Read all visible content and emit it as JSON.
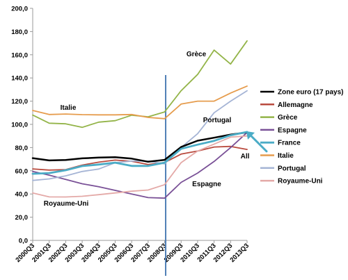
{
  "chart_data": {
    "type": "line",
    "ylim": [
      0,
      200
    ],
    "yticks": [
      "0,0",
      "20,0",
      "40,0",
      "60,0",
      "80,0",
      "100,0",
      "120,0",
      "140,0",
      "160,0",
      "180,0",
      "200,0"
    ],
    "categories": [
      "2000Q3",
      "2001Q3",
      "2002Q3",
      "2003Q3",
      "2004Q3",
      "2005Q3",
      "2006Q3",
      "2007Q3",
      "2008Q3",
      "2009Q3",
      "2010Q3",
      "2011Q3",
      "2012Q3",
      "2013Q3"
    ],
    "vline_at": "2008Q3",
    "series": [
      {
        "name": "Zone euro (17 pays)",
        "color": "#000000",
        "width": 2.5,
        "values": [
          70.9,
          68.9,
          69.3,
          70.7,
          71.4,
          71.7,
          70.5,
          67.8,
          69.4,
          80.5,
          85.9,
          88.5,
          91.2,
          93.1
        ]
      },
      {
        "name": "Allemagne",
        "color": "#b94a3e",
        "width": 1.8,
        "values": [
          61.6,
          60.6,
          61.0,
          64.9,
          67.4,
          69.2,
          68.2,
          65.4,
          67.1,
          74.4,
          77.0,
          80.5,
          81.0,
          78.4
        ]
      },
      {
        "name": "Grèce",
        "color": "#93b448",
        "width": 1.8,
        "values": [
          108.0,
          101.0,
          100.5,
          97.4,
          101.9,
          103.2,
          107.9,
          106.5,
          110.7,
          129.0,
          143.0,
          164.0,
          152.0,
          172.0
        ]
      },
      {
        "name": "Espagne",
        "color": "#7a5197",
        "width": 1.8,
        "values": [
          59.4,
          56.2,
          52.6,
          48.8,
          46.3,
          43.1,
          40.0,
          36.9,
          36.4,
          50.0,
          58.0,
          68.0,
          80.0,
          93.0
        ]
      },
      {
        "name": "France",
        "color": "#4bacc6",
        "width": 2.8,
        "values": [
          57.4,
          58.0,
          60.5,
          64.1,
          65.4,
          67.0,
          64.2,
          64.2,
          67.0,
          78.9,
          82.5,
          85.8,
          90.6,
          93.5
        ]
      },
      {
        "name": "Italie",
        "color": "#e69c4d",
        "width": 1.8,
        "values": [
          112.0,
          108.5,
          108.9,
          108.4,
          108.2,
          108.2,
          108.5,
          106.0,
          104.9,
          117.5,
          120.0,
          120.0,
          127.0,
          133.0
        ]
      },
      {
        "name": "Portugal",
        "color": "#a5b4d5",
        "width": 1.8,
        "values": [
          51.7,
          53.0,
          55.6,
          59.4,
          61.5,
          67.0,
          68.4,
          68.3,
          66.0,
          80.0,
          92.0,
          110.0,
          120.0,
          129.0
        ]
      },
      {
        "name": "Royaume-Uni",
        "color": "#e4a9a7",
        "width": 1.8,
        "values": [
          40.9,
          37.5,
          37.4,
          38.0,
          39.4,
          40.9,
          42.4,
          43.4,
          48.0,
          67.0,
          77.0,
          83.0,
          89.0,
          90.0
        ]
      }
    ],
    "annotations": [
      {
        "text": "Grèce",
        "series": "Grèce"
      },
      {
        "text": "Italie",
        "series": "Italie"
      },
      {
        "text": "Portugal",
        "series": "Portugal"
      },
      {
        "text": "All",
        "series": "Allemagne"
      },
      {
        "text": "Espagne",
        "series": "Espagne"
      },
      {
        "text": "Royaume-Uni",
        "series": "Royaume-Uni"
      }
    ]
  }
}
